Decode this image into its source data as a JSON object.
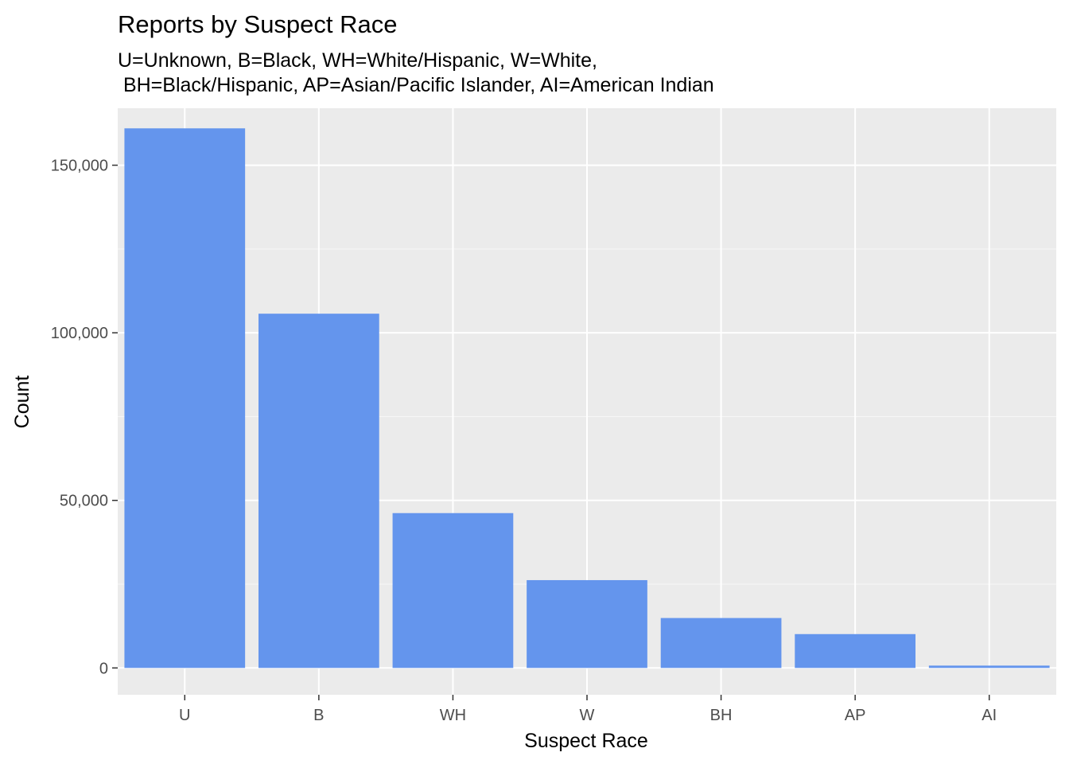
{
  "chart_data": {
    "type": "bar",
    "title": "Reports by Suspect Race",
    "subtitle_lines": [
      "U=Unknown, B=Black, WH=White/Hispanic, W=White,",
      " BH=Black/Hispanic, AP=Asian/Pacific Islander, AI=American Indian"
    ],
    "xlabel": "Suspect Race",
    "ylabel": "Count",
    "categories": [
      "U",
      "B",
      "WH",
      "W",
      "BH",
      "AP",
      "AI"
    ],
    "values": [
      161000,
      105700,
      46200,
      26200,
      14900,
      10100,
      700
    ],
    "ylim": [
      -8000,
      167000
    ],
    "yticks": [
      0,
      50000,
      100000,
      150000
    ],
    "ytick_labels": [
      "0",
      "50,000",
      "100,000",
      "150,000"
    ],
    "grid": true,
    "legend": "none",
    "colors": {
      "bar": "#6495ED",
      "panel_background": "#EBEBEB",
      "grid_major": "#FFFFFF",
      "grid_minor": "#F7F7F7",
      "tick_text": "#4D4D4D",
      "tick_mark": "#333333"
    }
  }
}
